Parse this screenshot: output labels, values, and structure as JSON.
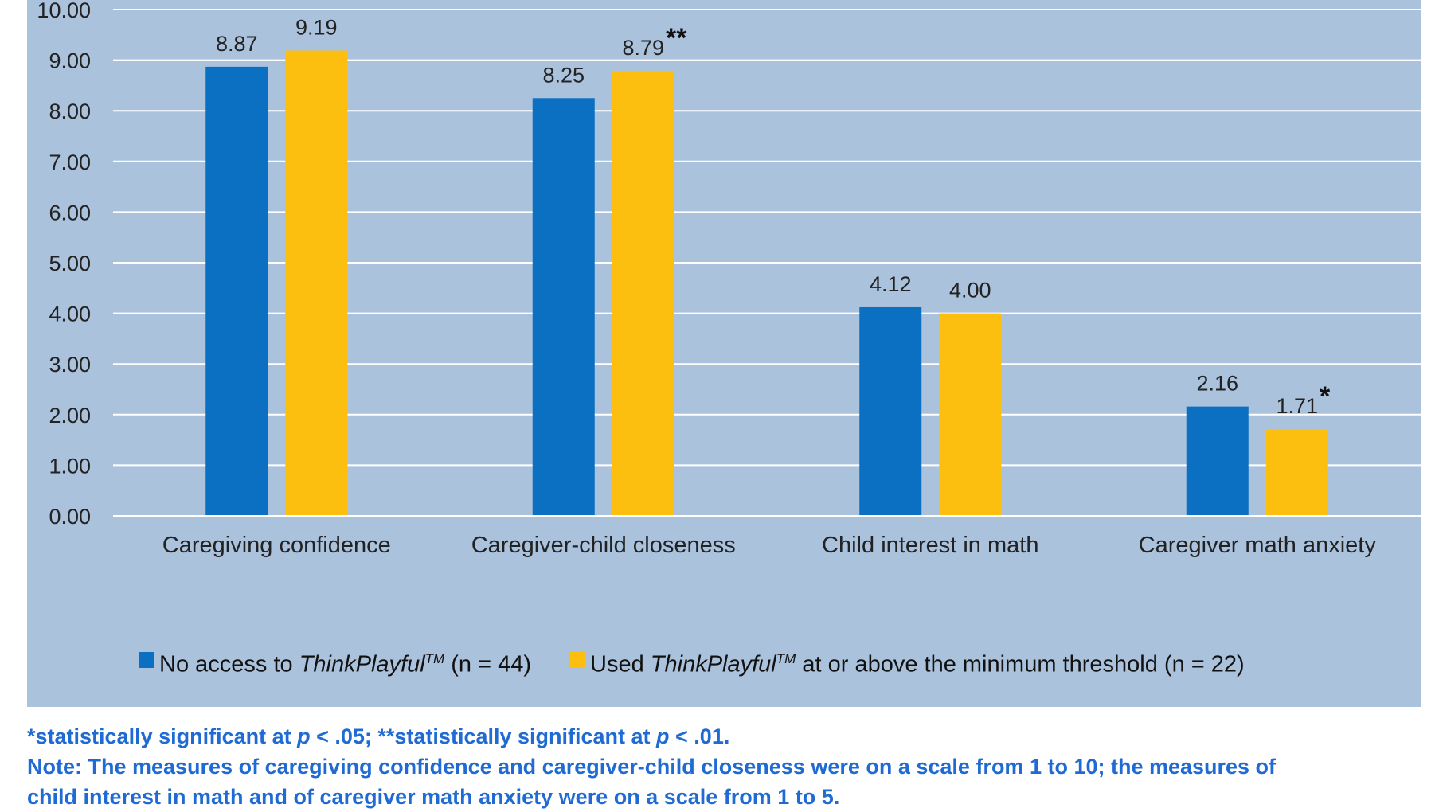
{
  "chart_data": {
    "type": "bar",
    "categories": [
      "Caregiving confidence",
      "Caregiver-child closeness",
      "Child interest in math",
      "Caregiver math anxiety"
    ],
    "series": [
      {
        "name": "No access to ThinkPlayful™ (n = 44)",
        "color": "#0b6fc2",
        "values": [
          8.87,
          8.25,
          4.12,
          2.16
        ],
        "labels": [
          "8.87",
          "8.25",
          "4.12",
          "2.16"
        ],
        "sig": [
          "",
          "",
          "",
          ""
        ]
      },
      {
        "name": "Used ThinkPlayful™ at or above the minimum threshold (n = 22)",
        "color": "#fdbf0f",
        "values": [
          9.19,
          8.79,
          4.0,
          1.71
        ],
        "labels": [
          "9.19",
          "8.79",
          "4.00",
          "1.71"
        ],
        "sig": [
          "",
          "**",
          "",
          "*"
        ]
      }
    ],
    "y_ticks": [
      "0.00",
      "1.00",
      "2.00",
      "3.00",
      "4.00",
      "5.00",
      "6.00",
      "7.00",
      "8.00",
      "9.00",
      "10.00"
    ],
    "ylim": [
      0,
      10
    ],
    "grid": true,
    "legend_position": "bottom"
  },
  "legend": {
    "series1": {
      "prefix": "No access to ",
      "brand": "ThinkPlayful",
      "tm": "TM",
      "suffix": " (n = 44)",
      "color": "#0b6fc2"
    },
    "series2": {
      "prefix": "Used ",
      "brand": "ThinkPlayful",
      "tm": "TM",
      "suffix": " at or above the minimum threshold (n = 22)",
      "color": "#fdbf0f"
    }
  },
  "notes": {
    "sig_a": "*statistically significant at ",
    "p1": "p",
    "sig_b": " < .05; **statistically significant at ",
    "p2": "p",
    "sig_c": " < .01.",
    "note_line1": "Note: The measures of caregiving confidence and caregiver-child closeness were on a scale from 1 to 10; the measures of",
    "note_line2": "child interest in math and of caregiver math anxiety were on a scale from 1 to 5."
  }
}
